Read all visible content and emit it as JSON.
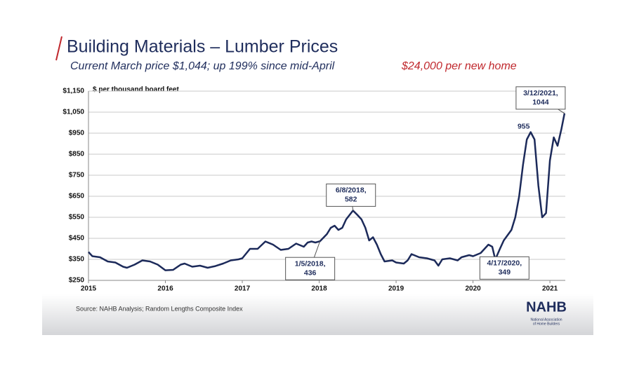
{
  "chart_data": {
    "type": "line",
    "title": "Building Materials – Lumber Prices",
    "subtitle": "Current March price $1,044; up 199% since mid-April",
    "note": "$24,000 per new home",
    "y_label": "$ per thousand board feet",
    "source": "Source: NAHB Analysis; Random Lengths Composite Index",
    "logo": {
      "name": "NAHB",
      "tagline": [
        "National Association",
        "of Home Builders"
      ]
    },
    "xlim": [
      2015,
      2021.2
    ],
    "xticks": [
      2015,
      2016,
      2017,
      2018,
      2019,
      2020,
      2021
    ],
    "ylim": [
      250,
      1150
    ],
    "yticks": [
      {
        "value": 250,
        "label": "$250"
      },
      {
        "value": 350,
        "label": "$350"
      },
      {
        "value": 450,
        "label": "$450"
      },
      {
        "value": 550,
        "label": "$550"
      },
      {
        "value": 650,
        "label": "$650"
      },
      {
        "value": 750,
        "label": "$750"
      },
      {
        "value": 850,
        "label": "$850"
      },
      {
        "value": 950,
        "label": "$950"
      },
      {
        "value": 1050,
        "label": "$1,050"
      },
      {
        "value": 1150,
        "label": "$1,150"
      }
    ],
    "grid": true,
    "series": [
      {
        "color": "#1c2a5a",
        "x": [
          2015.0,
          2015.05,
          2015.15,
          2015.25,
          2015.35,
          2015.45,
          2015.5,
          2015.6,
          2015.7,
          2015.8,
          2015.9,
          2016.0,
          2016.1,
          2016.2,
          2016.25,
          2016.35,
          2016.45,
          2016.55,
          2016.65,
          2016.75,
          2016.85,
          2016.95,
          2017.0,
          2017.1,
          2017.2,
          2017.3,
          2017.4,
          2017.5,
          2017.6,
          2017.7,
          2017.8,
          2017.85,
          2017.9,
          2017.95,
          2018.01,
          2018.1,
          2018.15,
          2018.2,
          2018.25,
          2018.3,
          2018.35,
          2018.44,
          2018.5,
          2018.55,
          2018.6,
          2018.65,
          2018.7,
          2018.75,
          2018.8,
          2018.85,
          2018.95,
          2019.0,
          2019.1,
          2019.15,
          2019.2,
          2019.3,
          2019.4,
          2019.5,
          2019.55,
          2019.6,
          2019.7,
          2019.8,
          2019.85,
          2019.95,
          2020.0,
          2020.1,
          2020.2,
          2020.25,
          2020.29,
          2020.35,
          2020.4,
          2020.5,
          2020.55,
          2020.6,
          2020.65,
          2020.7,
          2020.75,
          2020.8,
          2020.85,
          2020.9,
          2020.95,
          2021.0,
          2021.05,
          2021.1,
          2021.15,
          2021.19
        ],
        "values": [
          385,
          365,
          360,
          340,
          335,
          315,
          310,
          325,
          345,
          340,
          325,
          298,
          300,
          325,
          330,
          315,
          320,
          310,
          318,
          330,
          345,
          350,
          355,
          400,
          400,
          435,
          420,
          395,
          400,
          425,
          410,
          430,
          435,
          430,
          436,
          470,
          500,
          510,
          490,
          500,
          540,
          582,
          560,
          540,
          500,
          440,
          455,
          420,
          375,
          340,
          345,
          335,
          330,
          345,
          375,
          360,
          355,
          345,
          320,
          350,
          355,
          345,
          360,
          370,
          365,
          380,
          420,
          410,
          349,
          400,
          440,
          490,
          550,
          650,
          800,
          920,
          955,
          920,
          700,
          550,
          570,
          820,
          930,
          890,
          970,
          1044
        ]
      }
    ],
    "annotations": [
      {
        "label": [
          "1/5/2018,",
          "436"
        ],
        "x": 2018.01,
        "y": 436
      },
      {
        "label": [
          "6/8/2018,",
          "582"
        ],
        "x": 2018.44,
        "y": 582
      },
      {
        "label": [
          "4/17/2020,",
          "349"
        ],
        "x": 2020.29,
        "y": 349
      },
      {
        "label": [
          "3/12/2021,",
          "1044"
        ],
        "x": 2021.19,
        "y": 1044
      },
      {
        "label": [
          "955"
        ],
        "x": 2020.75,
        "y": 955
      }
    ]
  }
}
